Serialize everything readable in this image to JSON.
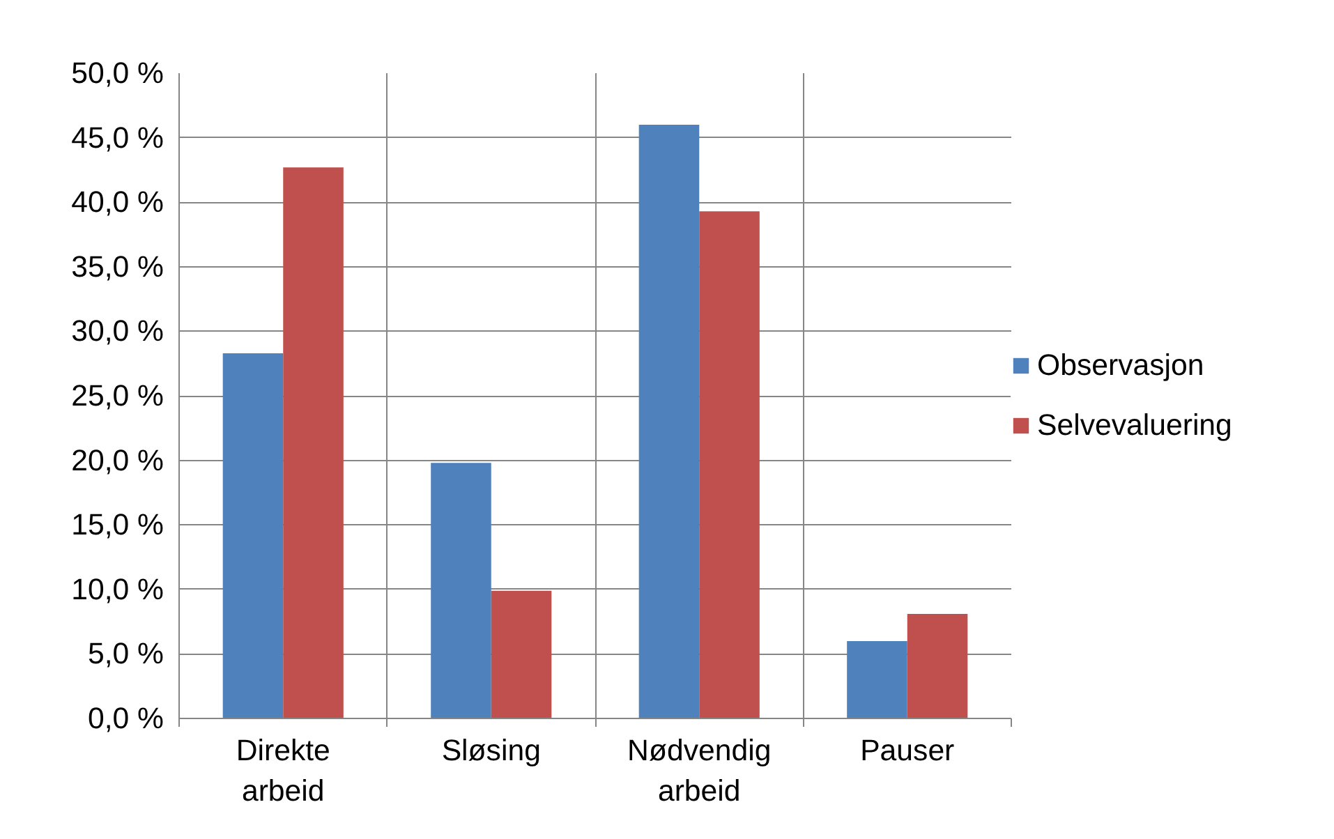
{
  "chart_data": {
    "type": "bar",
    "categories": [
      "Direkte\narbeid",
      "Sløsing",
      "Nødvendig\narbeid",
      "Pauser"
    ],
    "series": [
      {
        "name": "Observasjon",
        "color": "#4f81bd",
        "values": [
          28.3,
          19.8,
          46.0,
          6.0
        ]
      },
      {
        "name": "Selvevaluering",
        "color": "#c0504d",
        "values": [
          42.7,
          9.9,
          39.3,
          8.1
        ]
      }
    ],
    "ylim": [
      0,
      50
    ],
    "yticks": [
      {
        "value": 0,
        "label": "0,0 %"
      },
      {
        "value": 5,
        "label": "5,0 %"
      },
      {
        "value": 10,
        "label": "10,0 %"
      },
      {
        "value": 15,
        "label": "15,0 %"
      },
      {
        "value": 20,
        "label": "20,0 %"
      },
      {
        "value": 25,
        "label": "25,0 %"
      },
      {
        "value": 30,
        "label": "30,0 %"
      },
      {
        "value": 35,
        "label": "35,0 %"
      },
      {
        "value": 40,
        "label": "40,0 %"
      },
      {
        "value": 45,
        "label": "45,0 %"
      },
      {
        "value": 50,
        "label": "50,0 %"
      }
    ],
    "grid": true,
    "legend": "right"
  }
}
